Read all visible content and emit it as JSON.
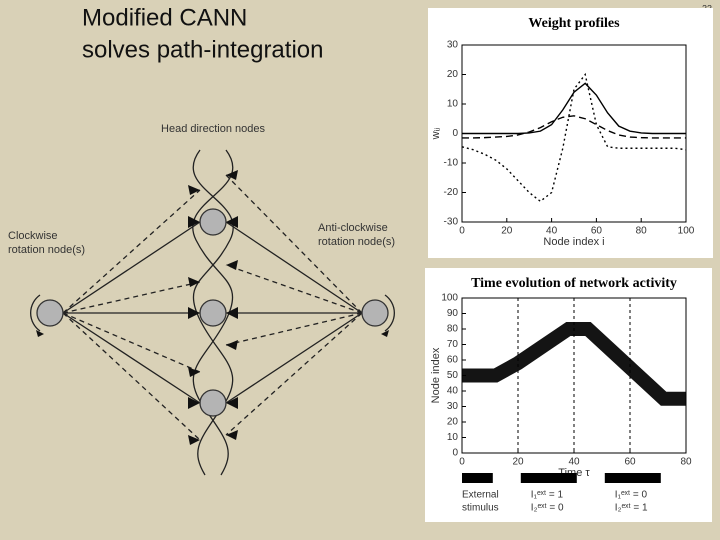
{
  "slide": {
    "title_lines": [
      "Modified CANN",
      "solves path-integration"
    ],
    "page_number": "23"
  },
  "diagram": {
    "top_label": "Head direction nodes",
    "left_label_lines": [
      "Clockwise",
      "rotation node(s)"
    ],
    "right_label_lines": [
      "Anti-clockwise",
      "rotation node(s)"
    ]
  },
  "chart_data": [
    {
      "type": "line",
      "title": "Weight profiles",
      "x_label": "Node index i",
      "y_label": "wᵢⱼ",
      "x": [
        0,
        5,
        10,
        15,
        20,
        25,
        30,
        35,
        40,
        45,
        50,
        55,
        60,
        65,
        70,
        75,
        80,
        85,
        90,
        95,
        100
      ],
      "series": [
        {
          "color": "#000000",
          "dash": "solid",
          "values": [
            0,
            0,
            0,
            0,
            0,
            0,
            0.2,
            0.8,
            3,
            8,
            14,
            17,
            13,
            7,
            2.5,
            0.8,
            0.2,
            0,
            0,
            0,
            0
          ]
        },
        {
          "color": "#000000",
          "dash": "dashed",
          "values": [
            -1.5,
            -1.5,
            -1.4,
            -1.2,
            -1,
            -0.5,
            0.5,
            2,
            4,
            5.5,
            6,
            5,
            3,
            1,
            -0.5,
            -1.2,
            -1.4,
            -1.5,
            -1.5,
            -1.5,
            -1.5
          ]
        },
        {
          "color": "#000000",
          "dash": "dotted",
          "values": [
            -4.5,
            -5.5,
            -7,
            -9,
            -12,
            -16,
            -20,
            -23,
            -20,
            -5,
            15,
            20,
            3,
            -4.5,
            -5,
            -5,
            -5,
            -5,
            -5,
            -5,
            -5.5
          ]
        }
      ],
      "xlim": [
        0,
        100
      ],
      "ylim": [
        -30,
        30
      ],
      "xticks": [
        0,
        20,
        40,
        60,
        80,
        100
      ],
      "yticks": [
        30,
        20,
        10,
        0,
        -10,
        -20,
        -30
      ],
      "grid": "none"
    },
    {
      "type": "band",
      "title": "Time evolution of network activity",
      "x_label": "Time τ",
      "y_label": "Node index",
      "x": [
        0,
        12,
        20,
        38,
        45,
        72,
        80
      ],
      "series": [
        {
          "color": "#000000",
          "dash": "solid",
          "values": [
            50,
            50,
            58,
            80,
            80,
            35,
            35
          ]
        }
      ],
      "xlim": [
        0,
        80
      ],
      "ylim": [
        0,
        100
      ],
      "xticks": [
        0,
        20,
        40,
        60,
        80
      ],
      "yticks": [
        0,
        10,
        20,
        30,
        40,
        50,
        60,
        70,
        80,
        90,
        100
      ],
      "grid": "x",
      "stimulus": {
        "label_lines": [
          "External",
          "stimulus"
        ],
        "intervals": [
          [
            0,
            11
          ],
          [
            21,
            41
          ],
          [
            51,
            71
          ]
        ],
        "annotations": [
          [],
          [
            "I₁ᵉˣᵗ = 1",
            "I₂ᵉˣᵗ = 0"
          ],
          [
            "I₁ᵉˣᵗ = 0",
            "I₂ᵉˣᵗ = 1"
          ]
        ]
      }
    }
  ]
}
